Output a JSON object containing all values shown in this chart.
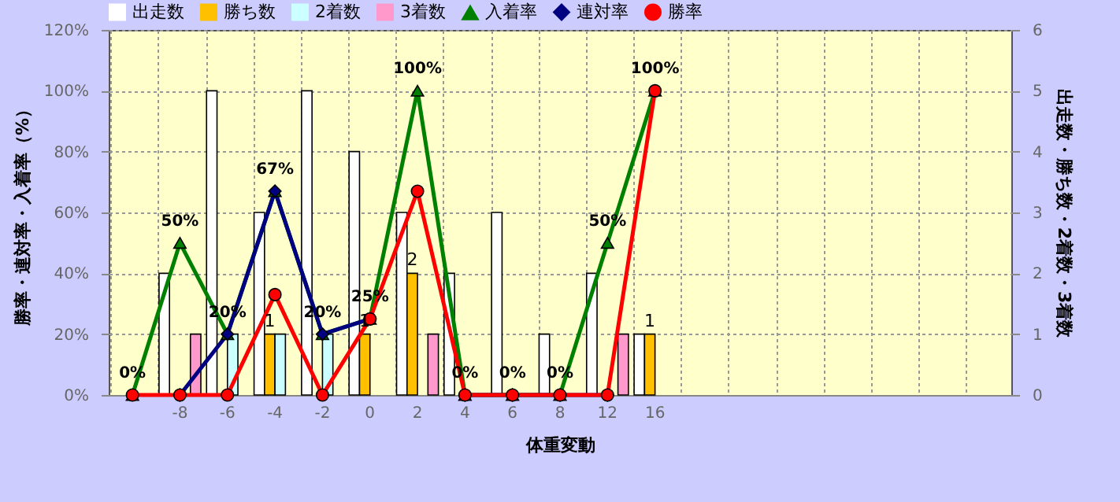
{
  "chart_data": {
    "type": "bar",
    "xlabel": "体重変動",
    "ylabel": "勝率・連対率・入着率（%）",
    "y2label": "出走数・勝ち数・2着数・3着数",
    "categories": [
      null,
      "-8",
      "-6",
      "-4",
      "-2",
      "0",
      "2",
      "4",
      "6",
      "8",
      "12",
      "16",
      null,
      null,
      null,
      null,
      null,
      null,
      null
    ],
    "series": [
      {
        "name": "出走数",
        "axis": "y2",
        "color": "#ffffff",
        "values": [
          0,
          2,
          5,
          3,
          5,
          4,
          3,
          2,
          3,
          1,
          2,
          1,
          null,
          null,
          null,
          null,
          null,
          null,
          null
        ]
      },
      {
        "name": "勝ち数",
        "axis": "y2",
        "color": "#ffc000",
        "values": [
          0,
          0,
          0,
          1,
          0,
          1,
          2,
          0,
          0,
          0,
          0,
          1,
          null,
          null,
          null,
          null,
          null,
          null,
          null
        ],
        "value_labels": [
          null,
          null,
          null,
          "1",
          null,
          "1",
          "2",
          null,
          null,
          null,
          null,
          "1",
          null,
          null,
          null,
          null,
          null,
          null,
          null
        ]
      },
      {
        "name": "2着数",
        "axis": "y2",
        "color": "#ccffff",
        "values": [
          0,
          0,
          1,
          1,
          1,
          0,
          0,
          0,
          0,
          0,
          0,
          0,
          null,
          null,
          null,
          null,
          null,
          null,
          null
        ]
      },
      {
        "name": "3着数",
        "axis": "y2",
        "color": "#ff99cc",
        "values": [
          0,
          1,
          0,
          0,
          0,
          0,
          1,
          0,
          0,
          0,
          1,
          0,
          null,
          null,
          null,
          null,
          null,
          null,
          null
        ]
      },
      {
        "name": "入着率",
        "type": "line",
        "marker": "triangle",
        "color": "#008000",
        "values": [
          0,
          50,
          20,
          67,
          20,
          25,
          100,
          0,
          0,
          0,
          50,
          100,
          null,
          null,
          null,
          null,
          null,
          null,
          null
        ],
        "value_labels": [
          "0%",
          "50%",
          "20%",
          "67%",
          "20%",
          "25%",
          "100%",
          "0%",
          "0%",
          "0%",
          "50%",
          "100%",
          null,
          null,
          null,
          null,
          null,
          null,
          null
        ]
      },
      {
        "name": "連対率",
        "type": "line",
        "marker": "diamond",
        "color": "#000080",
        "values": [
          null,
          0,
          20,
          67,
          20,
          25,
          null,
          0,
          0,
          0,
          0,
          null,
          null,
          null,
          null,
          null,
          null,
          null,
          null
        ]
      },
      {
        "name": "勝率",
        "type": "line",
        "marker": "circle",
        "color": "#ff0000",
        "values": [
          0,
          0,
          0,
          33,
          0,
          25,
          67,
          0,
          0,
          0,
          0,
          100,
          null,
          null,
          null,
          null,
          null,
          null,
          null
        ]
      }
    ],
    "ylim": [
      0,
      120
    ],
    "yticks": [
      {
        "value": 0,
        "label": "0%"
      },
      {
        "value": 20,
        "label": "20%"
      },
      {
        "value": 40,
        "label": "40%"
      },
      {
        "value": 60,
        "label": "60%"
      },
      {
        "value": 80,
        "label": "80%"
      },
      {
        "value": 100,
        "label": "100%"
      },
      {
        "value": 120,
        "label": "120%"
      }
    ],
    "y2lim": [
      0,
      6
    ],
    "y2ticks": [
      0,
      1,
      2,
      3,
      4,
      5,
      6
    ],
    "grid": true,
    "legend": "top"
  }
}
